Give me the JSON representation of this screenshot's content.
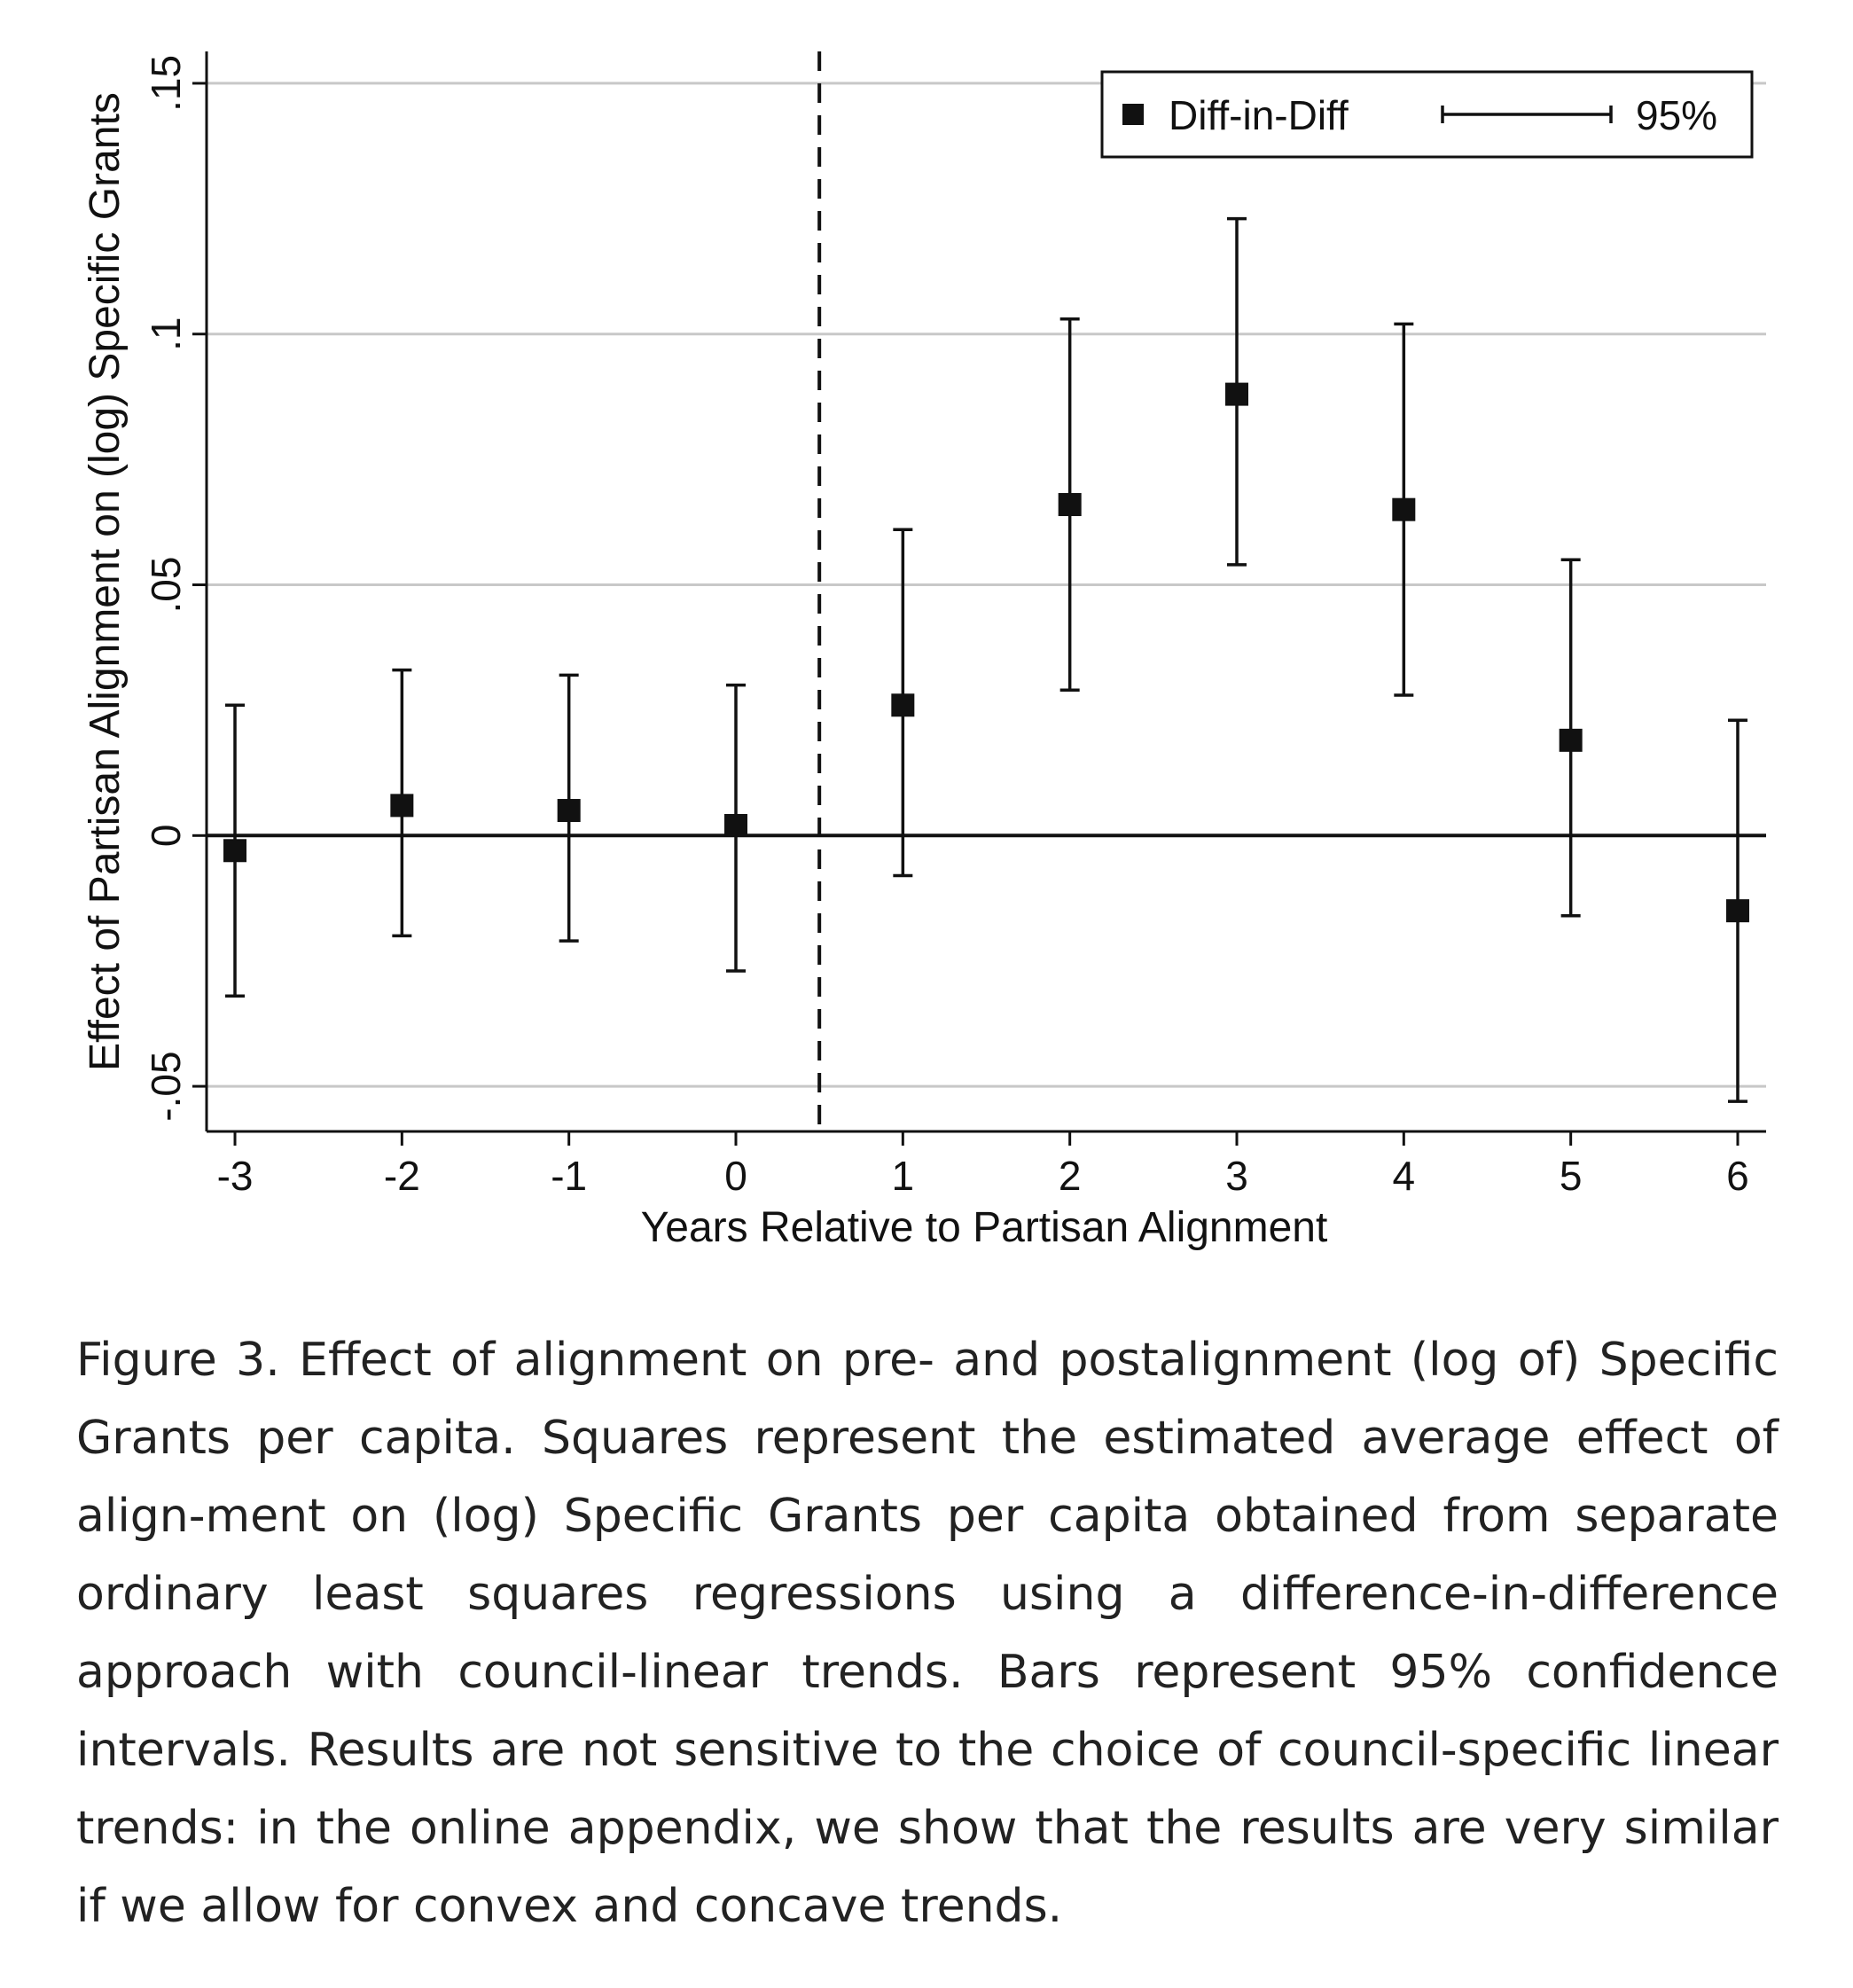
{
  "chart_data": {
    "type": "scatter",
    "ylabel": "Effect of Partisan Alignment on (log) Specific Grants",
    "xlabel": "Years Relative to Partisan Alignment",
    "x": [
      -3,
      -2,
      -1,
      0,
      1,
      2,
      3,
      4,
      5,
      6
    ],
    "x_tick_labels": [
      "-3",
      "-2",
      "-1",
      "0",
      "1",
      "2",
      "3",
      "4",
      "5",
      "6"
    ],
    "y_ticks": [
      -0.05,
      0,
      0.05,
      0.1,
      0.15
    ],
    "y_tick_labels": [
      "-.05",
      "0",
      ".05",
      ".1",
      ".15"
    ],
    "ylim": [
      -0.059,
      0.156
    ],
    "xlim": [
      -3.17,
      6.17
    ],
    "vertical_line_x": 0.5,
    "horizontal_line_y": 0,
    "grid": true,
    "legend_position": "top-right",
    "series": [
      {
        "name": "Diff-in-Diff",
        "ci_name": "95%",
        "estimates": [
          -0.003,
          0.006,
          0.005,
          0.002,
          0.026,
          0.066,
          0.088,
          0.065,
          0.019,
          -0.015
        ],
        "ci_lower": [
          -0.032,
          -0.02,
          -0.021,
          -0.027,
          -0.008,
          0.029,
          0.054,
          0.028,
          -0.016,
          -0.053
        ],
        "ci_upper": [
          0.026,
          0.033,
          0.032,
          0.03,
          0.061,
          0.103,
          0.123,
          0.102,
          0.055,
          0.023
        ]
      }
    ]
  },
  "caption": {
    "text": "Figure 3. Effect of alignment on pre- and postalignment (log of) Specific Grants per capita. Squares represent the estimated average effect of align-ment on (log) Specific Grants per capita obtained from separate ordinary least squares regressions using a difference-in-difference approach with council-linear trends. Bars represent 95% confidence intervals. Results are not sensitive to the choice of council-specific linear trends: in the online appendix, we show that the results are very similar if we allow for convex and concave trends."
  }
}
